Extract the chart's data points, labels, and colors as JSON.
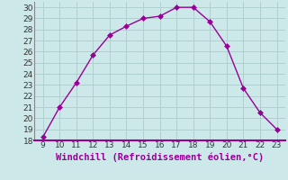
{
  "x": [
    9,
    10,
    11,
    12,
    13,
    14,
    15,
    16,
    17,
    18,
    19,
    20,
    21,
    22,
    23
  ],
  "y": [
    18.3,
    21.0,
    23.2,
    25.7,
    27.5,
    28.3,
    29.0,
    29.2,
    30.0,
    30.0,
    28.7,
    26.5,
    22.7,
    20.5,
    19.0
  ],
  "line_color": "#990099",
  "marker": "D",
  "marker_size": 3,
  "xlabel": "Windchill (Refroidissement éolien,°C)",
  "xlabel_color": "#990099",
  "xlim": [
    8.5,
    23.5
  ],
  "ylim": [
    18,
    30.5
  ],
  "yticks": [
    18,
    19,
    20,
    21,
    22,
    23,
    24,
    25,
    26,
    27,
    28,
    29,
    30
  ],
  "xticks": [
    9,
    10,
    11,
    12,
    13,
    14,
    15,
    16,
    17,
    18,
    19,
    20,
    21,
    22,
    23
  ],
  "grid_color": "#b0d0d0",
  "bg_color": "#cce8e8",
  "tick_fontsize": 6.5,
  "xlabel_fontsize": 7.5,
  "line_width": 1.0,
  "spine_color": "#888888",
  "separator_color": "#990099"
}
